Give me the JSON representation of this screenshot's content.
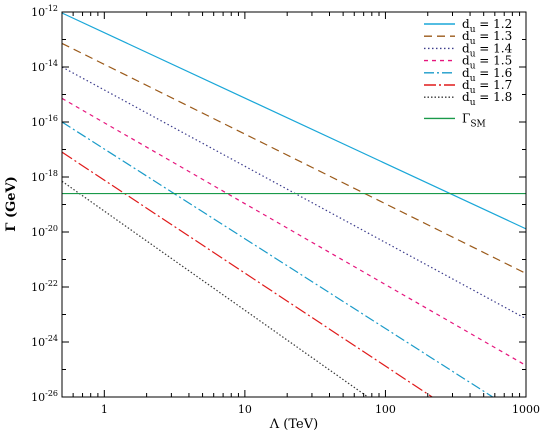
{
  "chart_data": {
    "type": "line",
    "title": "",
    "xlabel": "Λ (TeV)",
    "ylabel": "Γ (GeV)",
    "xscale": "log",
    "yscale": "log",
    "xlim": [
      0.5,
      1000
    ],
    "ylim": [
      1e-26,
      1e-12
    ],
    "x_ticks": [
      {
        "value": 1,
        "label": "1"
      },
      {
        "value": 10,
        "label": "10"
      },
      {
        "value": 100,
        "label": "100"
      },
      {
        "value": 1000,
        "label": "1000"
      }
    ],
    "y_ticks": [
      {
        "value": 1e-12,
        "base": "10",
        "exp": "-12"
      },
      {
        "value": 1e-14,
        "base": "10",
        "exp": "-14"
      },
      {
        "value": 1e-16,
        "base": "10",
        "exp": "-16"
      },
      {
        "value": 1e-18,
        "base": "10",
        "exp": "-18"
      },
      {
        "value": 1e-20,
        "base": "10",
        "exp": "-20"
      },
      {
        "value": 1e-22,
        "base": "10",
        "exp": "-22"
      },
      {
        "value": 1e-24,
        "base": "10",
        "exp": "-24"
      },
      {
        "value": 1e-26,
        "base": "10",
        "exp": "-26"
      }
    ],
    "grid": false,
    "legend_position": "top-right",
    "series": [
      {
        "name": "d_u = 1.2",
        "label_main": "d",
        "label_sub": "u",
        "label_rest": " = 1.2",
        "color": "#1aa7d8",
        "dash": "",
        "x": [
          0.5,
          1000
        ],
        "y": [
          9.2e-13,
          1.3e-20
        ]
      },
      {
        "name": "d_u = 1.3",
        "label_main": "d",
        "label_sub": "u",
        "label_rest": " = 1.3",
        "color": "#9b5a1a",
        "dash": "8,5",
        "x": [
          0.5,
          1000
        ],
        "y": [
          7.2e-14,
          3.1e-22
        ]
      },
      {
        "name": "d_u = 1.4",
        "label_main": "d",
        "label_sub": "u",
        "label_rest": " = 1.4",
        "color": "#3c3c8c",
        "dash": "1.5,2.5",
        "x": [
          0.5,
          1000
        ],
        "y": [
          1e-14,
          7e-24
        ]
      },
      {
        "name": "d_u = 1.5",
        "label_main": "d",
        "label_sub": "u",
        "label_rest": " = 1.5",
        "color": "#e6157d",
        "dash": "4,4",
        "x": [
          0.5,
          1000
        ],
        "y": [
          7.2e-16,
          1.4e-25
        ]
      },
      {
        "name": "d_u = 1.6",
        "label_main": "d",
        "label_sub": "u",
        "label_rest": " = 1.6",
        "color": "#1a9bc9",
        "dash": "10,3,2,3",
        "x": [
          0.5,
          580
        ],
        "y": [
          1e-16,
          1e-26
        ]
      },
      {
        "name": "d_u = 1.7",
        "label_main": "d",
        "label_sub": "u",
        "label_rest": " = 1.7",
        "color": "#e01a1a",
        "dash": "12,3,2,3",
        "x": [
          0.5,
          215
        ],
        "y": [
          8e-18,
          1e-26
        ]
      },
      {
        "name": "d_u = 1.8",
        "label_main": "d",
        "label_sub": "u",
        "label_rest": " = 1.8",
        "color": "#3a3a3a",
        "dash": "1.5,2",
        "x": [
          0.5,
          75
        ],
        "y": [
          7e-19,
          1e-26
        ]
      },
      {
        "name": "Γ_SM",
        "label_main": "Γ",
        "label_sub": "SM",
        "label_rest": "",
        "color": "#1a9a4a",
        "dash": "",
        "x": [
          0.5,
          1000
        ],
        "y": [
          2.5e-19,
          2.5e-19
        ]
      }
    ]
  }
}
